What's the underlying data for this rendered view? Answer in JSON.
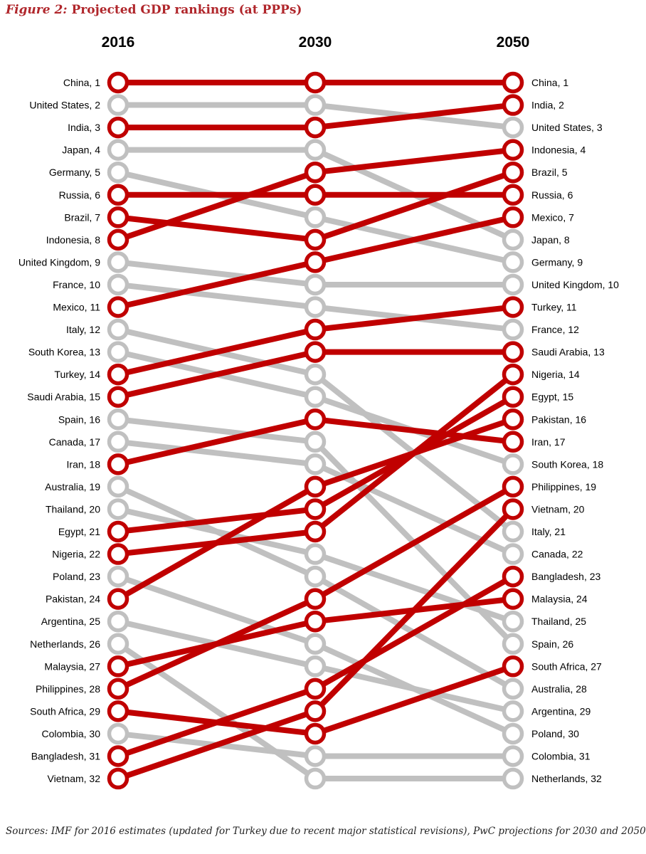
{
  "figure": {
    "label": "Figure 2:",
    "title": "Projected GDP rankings (at PPPs)",
    "source": "Sources: IMF for 2016 estimates (updated for Turkey due to recent major statistical revisions), PwC projections for 2030 and 2050"
  },
  "colors": {
    "highlight": "#c00000",
    "other": "#c0c0c0",
    "title": "#b0262b"
  },
  "chart_data": {
    "type": "slope",
    "years": [
      "2016",
      "2030",
      "2050"
    ],
    "value_label": "rank",
    "series": [
      {
        "name": "China",
        "ranks": [
          1,
          1,
          1
        ],
        "highlight": true
      },
      {
        "name": "United States",
        "ranks": [
          2,
          2,
          3
        ],
        "highlight": false
      },
      {
        "name": "India",
        "ranks": [
          3,
          3,
          2
        ],
        "highlight": true
      },
      {
        "name": "Japan",
        "ranks": [
          4,
          4,
          8
        ],
        "highlight": false
      },
      {
        "name": "Germany",
        "ranks": [
          5,
          7,
          9
        ],
        "highlight": false
      },
      {
        "name": "Russia",
        "ranks": [
          6,
          6,
          6
        ],
        "highlight": true
      },
      {
        "name": "Brazil",
        "ranks": [
          7,
          8,
          5
        ],
        "highlight": true
      },
      {
        "name": "Indonesia",
        "ranks": [
          8,
          5,
          4
        ],
        "highlight": true
      },
      {
        "name": "United Kingdom",
        "ranks": [
          9,
          10,
          10
        ],
        "highlight": false
      },
      {
        "name": "France",
        "ranks": [
          10,
          11,
          12
        ],
        "highlight": false
      },
      {
        "name": "Mexico",
        "ranks": [
          11,
          9,
          7
        ],
        "highlight": true
      },
      {
        "name": "Italy",
        "ranks": [
          12,
          14,
          21
        ],
        "highlight": false
      },
      {
        "name": "South Korea",
        "ranks": [
          13,
          15,
          18
        ],
        "highlight": false
      },
      {
        "name": "Turkey",
        "ranks": [
          14,
          12,
          11
        ],
        "highlight": true
      },
      {
        "name": "Saudi Arabia",
        "ranks": [
          15,
          13,
          13
        ],
        "highlight": true
      },
      {
        "name": "Spain",
        "ranks": [
          16,
          17,
          26
        ],
        "highlight": false
      },
      {
        "name": "Canada",
        "ranks": [
          17,
          18,
          22
        ],
        "highlight": false
      },
      {
        "name": "Iran",
        "ranks": [
          18,
          16,
          17
        ],
        "highlight": true
      },
      {
        "name": "Australia",
        "ranks": [
          19,
          23,
          28
        ],
        "highlight": false
      },
      {
        "name": "Thailand",
        "ranks": [
          20,
          22,
          25
        ],
        "highlight": false
      },
      {
        "name": "Egypt",
        "ranks": [
          21,
          20,
          15
        ],
        "highlight": true
      },
      {
        "name": "Nigeria",
        "ranks": [
          22,
          21,
          14
        ],
        "highlight": true
      },
      {
        "name": "Poland",
        "ranks": [
          23,
          26,
          30
        ],
        "highlight": false
      },
      {
        "name": "Pakistan",
        "ranks": [
          24,
          19,
          16
        ],
        "highlight": true
      },
      {
        "name": "Argentina",
        "ranks": [
          25,
          27,
          29
        ],
        "highlight": false
      },
      {
        "name": "Netherlands",
        "ranks": [
          26,
          32,
          32
        ],
        "highlight": false
      },
      {
        "name": "Malaysia",
        "ranks": [
          27,
          25,
          24
        ],
        "highlight": true
      },
      {
        "name": "Philippines",
        "ranks": [
          28,
          24,
          19
        ],
        "highlight": true
      },
      {
        "name": "South Africa",
        "ranks": [
          29,
          30,
          27
        ],
        "highlight": true
      },
      {
        "name": "Colombia",
        "ranks": [
          30,
          31,
          31
        ],
        "highlight": false
      },
      {
        "name": "Bangladesh",
        "ranks": [
          31,
          28,
          23
        ],
        "highlight": true
      },
      {
        "name": "Vietnam",
        "ranks": [
          32,
          29,
          20
        ],
        "highlight": true
      }
    ]
  }
}
